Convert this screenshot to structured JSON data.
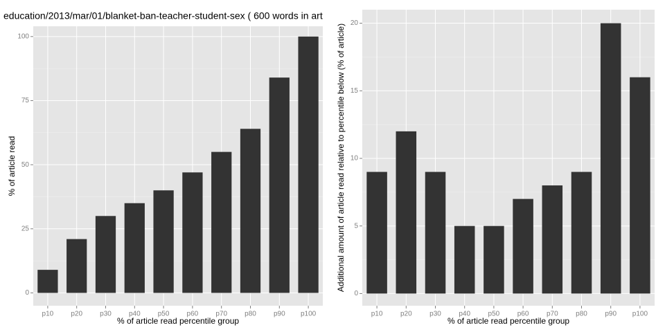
{
  "chart_data": [
    {
      "type": "bar",
      "title": "education/2013/mar/01/blanket-ban-teacher-student-sex ( 600 words in art",
      "x_label": "% of article read percentile group",
      "y_label": "% of article read",
      "categories": [
        "p10",
        "p20",
        "p30",
        "p40",
        "p50",
        "p60",
        "p70",
        "p80",
        "p90",
        "p100"
      ],
      "values": [
        9,
        21,
        30,
        35,
        40,
        47,
        55,
        64,
        84,
        100
      ],
      "color": "#333333",
      "ylim": [
        -5,
        104
      ],
      "yticks": [
        0,
        25,
        50,
        75,
        100
      ],
      "grid": true
    },
    {
      "type": "bar",
      "x_label": "% of article read percentile group",
      "y_label": "Additional amount of article read relative to percentile below (% of article)",
      "categories": [
        "p10",
        "p20",
        "p30",
        "p40",
        "p50",
        "p60",
        "p70",
        "p80",
        "p90",
        "p100"
      ],
      "values": [
        9,
        12,
        9,
        5,
        5,
        7,
        8,
        9,
        20,
        16
      ],
      "color": "#333333",
      "ylim": [
        -0.9,
        21
      ],
      "yticks": [
        0,
        5,
        10,
        15,
        20
      ],
      "grid": true
    }
  ]
}
